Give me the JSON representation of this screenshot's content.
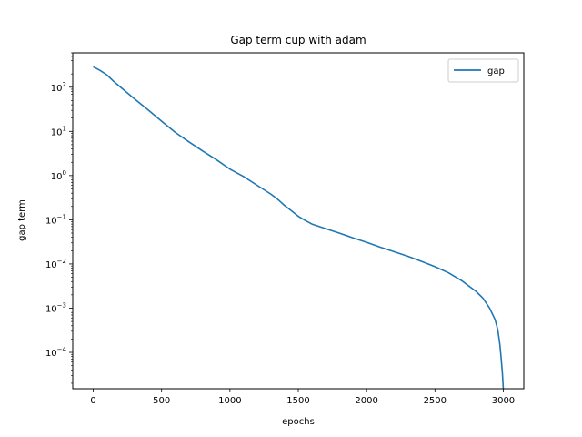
{
  "chart_data": {
    "type": "line",
    "title": "Gap term cup with adam",
    "xlabel": "epochs",
    "ylabel": "gap term",
    "xlim": [
      -150,
      3150
    ],
    "ylim": [
      1.5e-05,
      600
    ],
    "yscale": "log",
    "x_ticks": [
      0,
      500,
      1000,
      1500,
      2000,
      2500,
      3000
    ],
    "x_tick_labels": [
      "0",
      "500",
      "1000",
      "1500",
      "2000",
      "2500",
      "3000"
    ],
    "y_ticks": [
      0.0001,
      0.001,
      0.01,
      0.1,
      1,
      10,
      100
    ],
    "y_tick_labels": [
      {
        "base": "10",
        "exp": "−4"
      },
      {
        "base": "10",
        "exp": "−3"
      },
      {
        "base": "10",
        "exp": "−2"
      },
      {
        "base": "10",
        "exp": "−1"
      },
      {
        "base": "10",
        "exp": "0"
      },
      {
        "base": "10",
        "exp": "1"
      },
      {
        "base": "10",
        "exp": "2"
      }
    ],
    "grid": false,
    "legend_position": "top-right",
    "series": [
      {
        "name": "gap",
        "color": "#1f77b4",
        "x": [
          0,
          50,
          100,
          150,
          200,
          300,
          400,
          500,
          600,
          700,
          800,
          900,
          1000,
          1100,
          1200,
          1300,
          1350,
          1400,
          1450,
          1500,
          1550,
          1600,
          1700,
          1800,
          1900,
          2000,
          2100,
          2200,
          2300,
          2400,
          2500,
          2600,
          2700,
          2800,
          2850,
          2900,
          2940,
          2960,
          2975,
          2985,
          2993,
          2997,
          3000
        ],
        "y": [
          290,
          240,
          190,
          135,
          100,
          55,
          31,
          17,
          9.5,
          5.8,
          3.6,
          2.3,
          1.4,
          0.95,
          0.6,
          0.38,
          0.29,
          0.21,
          0.16,
          0.12,
          0.097,
          0.08,
          0.063,
          0.05,
          0.039,
          0.031,
          0.024,
          0.019,
          0.015,
          0.0115,
          0.0087,
          0.0063,
          0.0041,
          0.0024,
          0.0017,
          0.001,
          0.00055,
          0.00032,
          0.00015,
          7e-05,
          3.5e-05,
          2.2e-05,
          1.5e-05
        ]
      }
    ]
  }
}
